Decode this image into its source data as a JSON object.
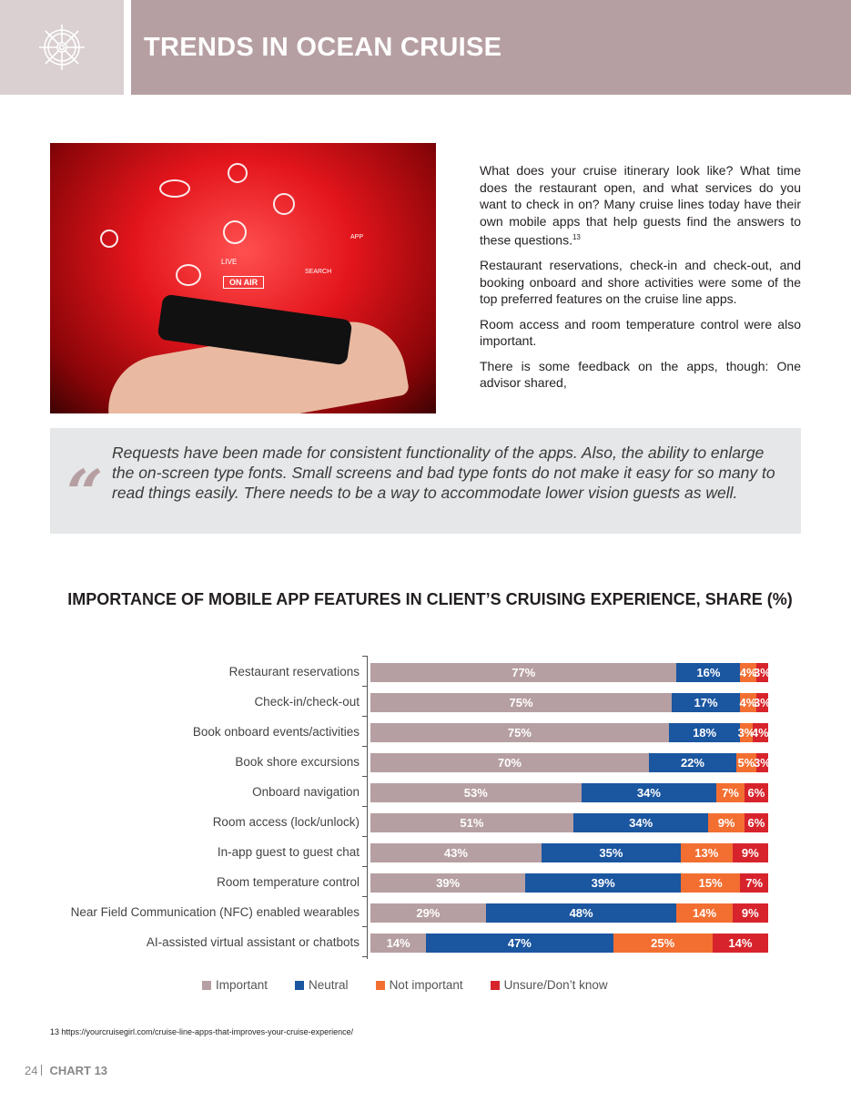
{
  "header": {
    "title": "TRENDS IN OCEAN CRUISE",
    "icon": "ship-wheel-icon"
  },
  "intro": {
    "paragraphs": [
      "What does your cruise itinerary look like? What time does the restaurant open, and what services do you want to check in on? Many cruise lines today have their own mobile apps that help guests find the answers to these questions.",
      "Restaurant reservations, check-in and check-out, and booking onboard and shore activities were some of the top preferred features on the cruise line apps.",
      "Room access and room temperature control were also important.",
      "There is some feedback on the apps, though: One advisor shared,"
    ],
    "footnote_ref": "13"
  },
  "photo": {
    "texts": [
      "ON AIR",
      "LIVE",
      "APP",
      "SEARCH"
    ]
  },
  "quote": {
    "text": "Requests have been made for consistent functionality of the apps. Also, the ability to enlarge the on-screen type fonts. Small screens and bad type fonts do not make it easy for so many to read things easily. There needs to be a way to accommodate lower vision guests as well."
  },
  "chart_data": {
    "type": "bar",
    "stacked": true,
    "orientation": "horizontal",
    "title": "IMPORTANCE OF MOBILE APP FEATURES IN CLIENT’S CRUISING EXPERIENCE, SHARE (%)",
    "categories": [
      "Restaurant reservations",
      "Check-in/check-out",
      "Book onboard events/activities",
      "Book shore excursions",
      "Onboard navigation",
      "Room access (lock/unlock)",
      "In-app guest to guest chat",
      "Room temperature control",
      "Near Field Communication (NFC) enabled wearables",
      "AI-assisted virtual assistant or chatbots"
    ],
    "series": [
      {
        "name": "Important",
        "color": "#b69fa2",
        "values": [
          77,
          75,
          75,
          70,
          53,
          51,
          43,
          39,
          29,
          14
        ]
      },
      {
        "name": "Neutral",
        "color": "#1b56a0",
        "values": [
          16,
          17,
          18,
          22,
          34,
          34,
          35,
          39,
          48,
          47
        ]
      },
      {
        "name": "Not important",
        "color": "#f36f31",
        "values": [
          4,
          4,
          3,
          5,
          7,
          9,
          13,
          15,
          14,
          25
        ]
      },
      {
        "name": "Unsure/Don’t know",
        "color": "#d7242c",
        "values": [
          3,
          3,
          4,
          3,
          6,
          6,
          9,
          7,
          9,
          14
        ]
      }
    ],
    "legend": "bottom"
  },
  "footnote": "13  https://yourcruisegirl.com/cruise-line-apps-that-improves-your-cruise-experience/",
  "page": {
    "number": "24",
    "label": "CHART 13"
  }
}
